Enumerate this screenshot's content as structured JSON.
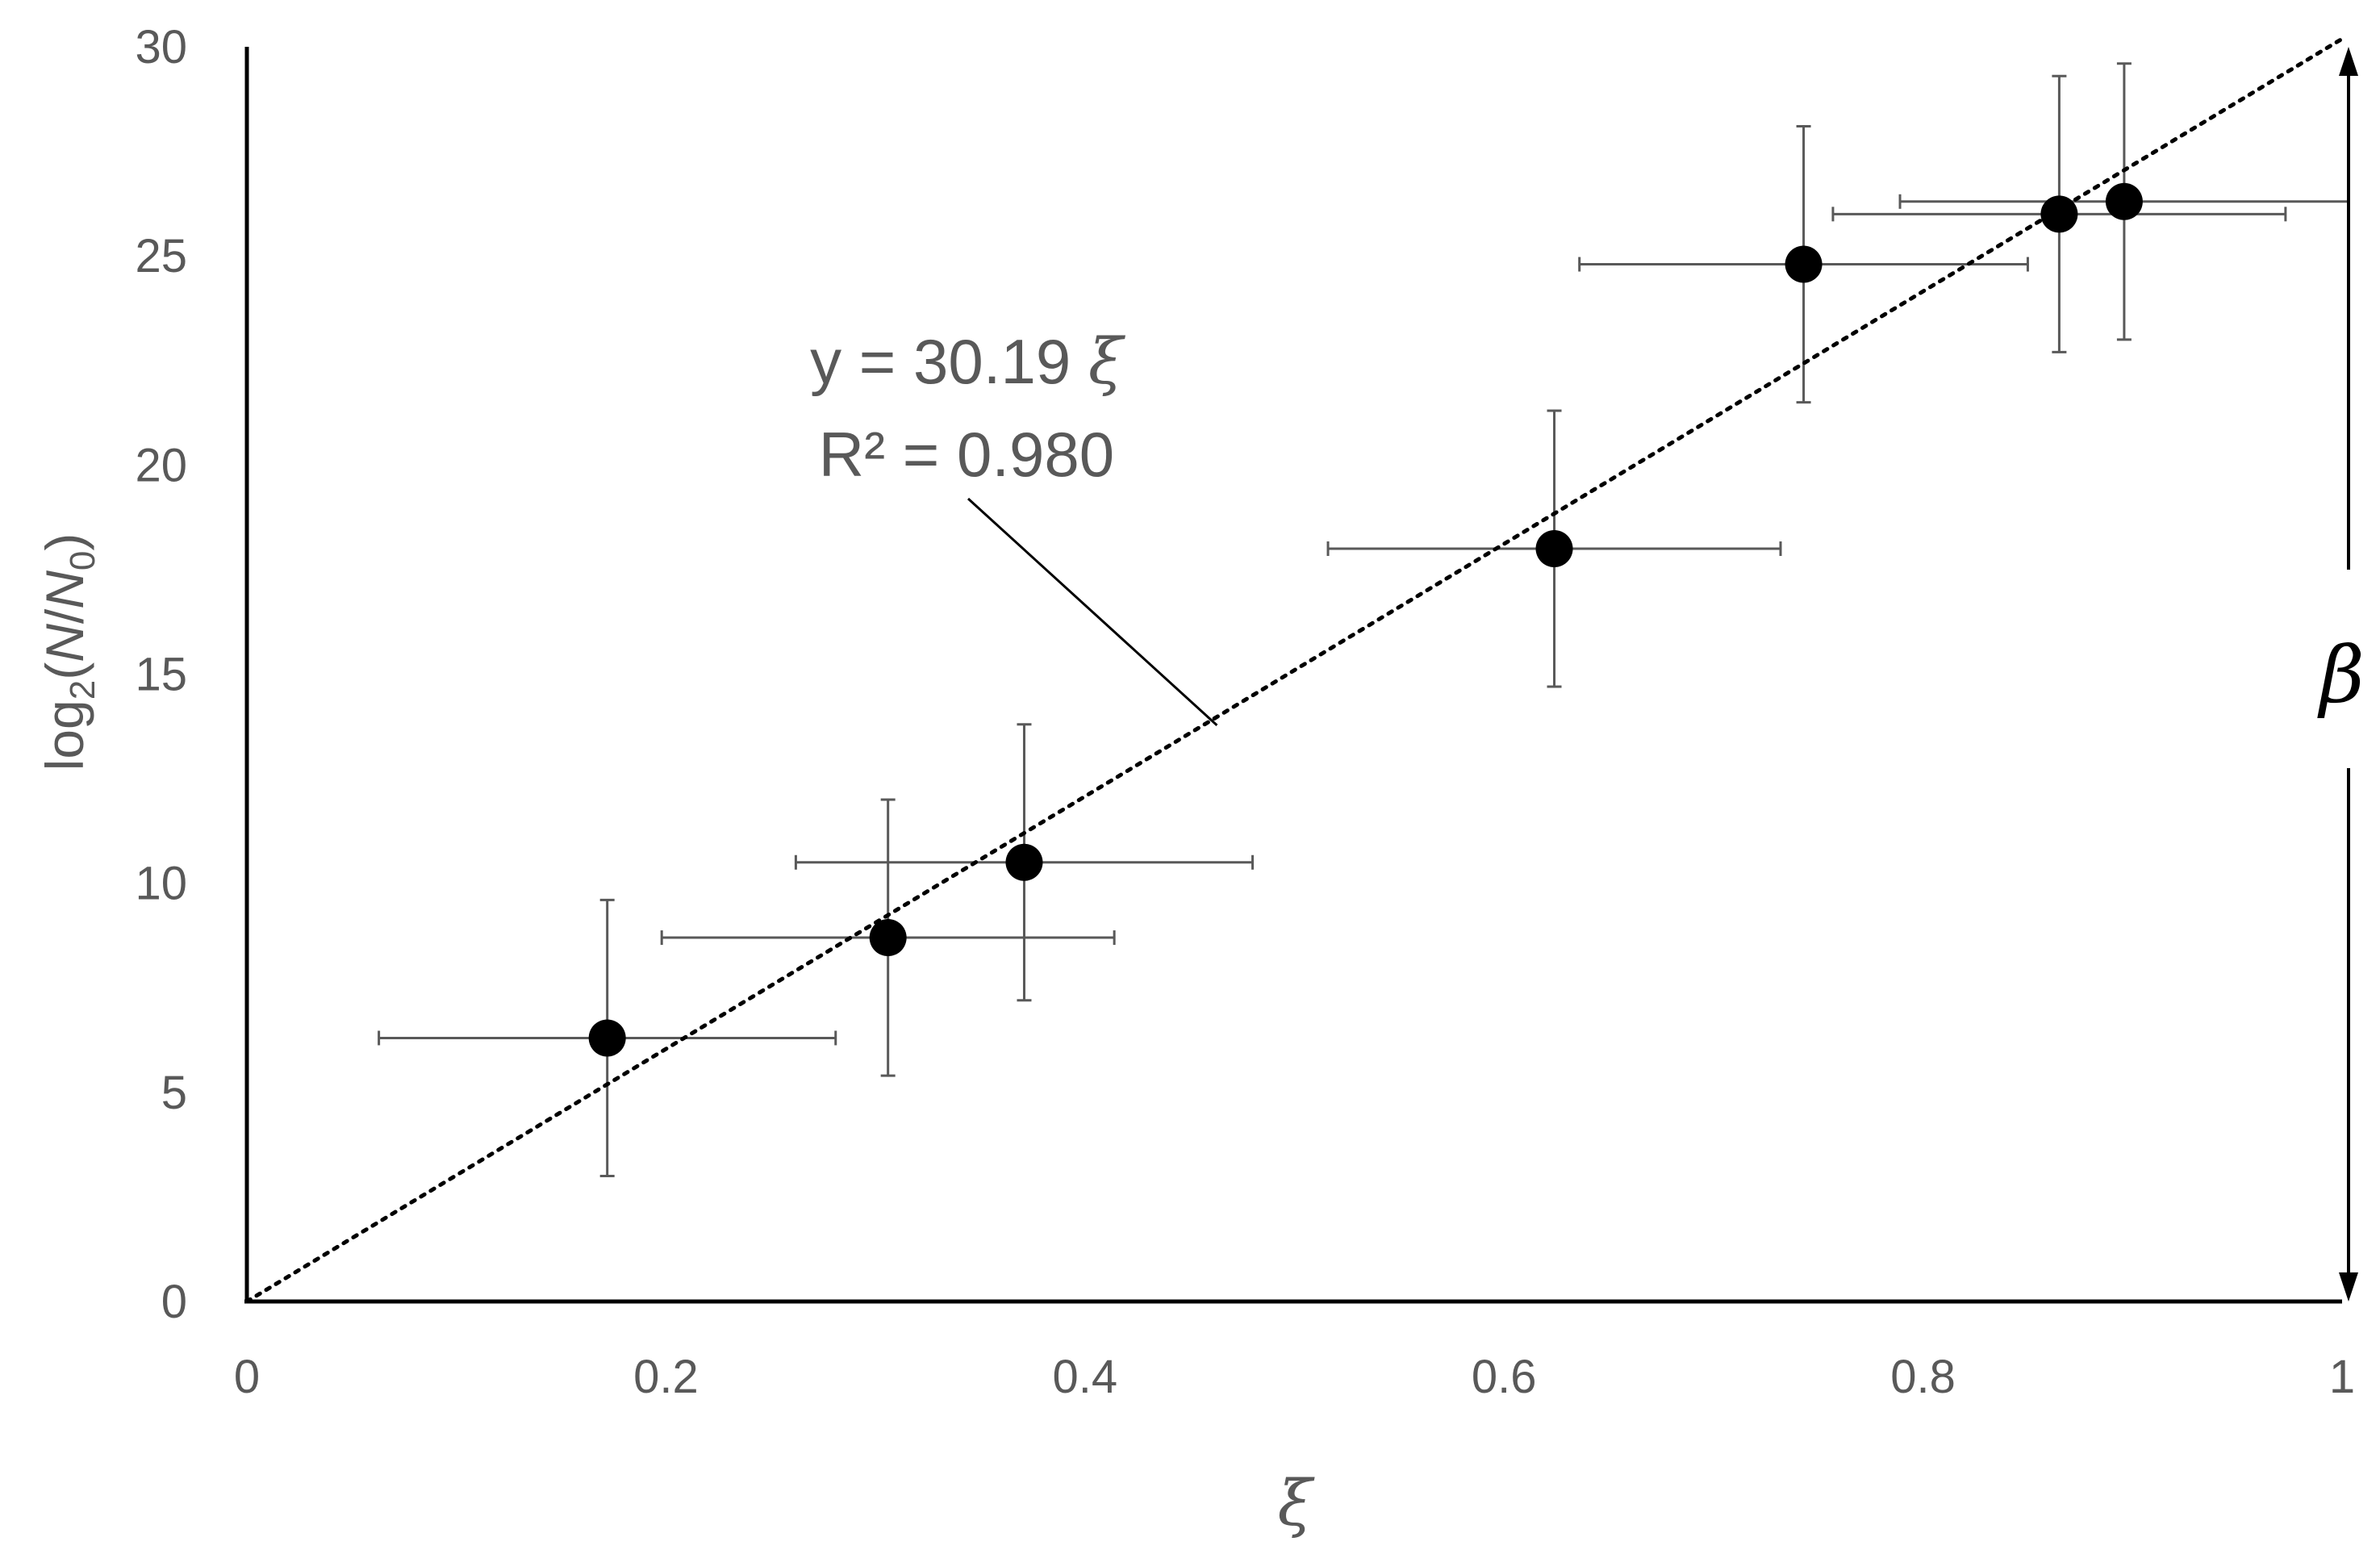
{
  "chart_data": {
    "type": "scatter",
    "title": "",
    "xlabel": "ξ",
    "ylabel": {
      "prefix": "log",
      "subscript": "2",
      "open": "(",
      "n": "N",
      "slash": "/",
      "n0": "N",
      "n0_sub": "0",
      "close": ")"
    },
    "xlim": [
      0,
      1
    ],
    "ylim": [
      0,
      30
    ],
    "xticks": [
      0,
      0.2,
      0.4,
      0.6,
      0.8,
      1
    ],
    "xtick_labels": [
      "0",
      "0.2",
      "0.4",
      "0.6",
      "0.8",
      "1"
    ],
    "yticks": [
      0,
      5,
      10,
      15,
      20,
      25,
      30
    ],
    "ytick_labels": [
      "0",
      "5",
      "10",
      "15",
      "20",
      "25",
      "30"
    ],
    "grid": false,
    "legend": "none",
    "points": [
      {
        "x": 0.172,
        "y": 6.3,
        "xerr": 0.109,
        "yerr": 3.3
      },
      {
        "x": 0.306,
        "y": 8.7,
        "xerr": 0.108,
        "yerr": 3.3
      },
      {
        "x": 0.371,
        "y": 10.5,
        "xerr": 0.109,
        "yerr": 3.3
      },
      {
        "x": 0.624,
        "y": 18.0,
        "xerr": 0.108,
        "yerr": 3.3
      },
      {
        "x": 0.743,
        "y": 24.8,
        "xerr": 0.107,
        "yerr": 3.3
      },
      {
        "x": 0.865,
        "y": 26.0,
        "xerr": 0.108,
        "yerr": 3.3
      },
      {
        "x": 0.896,
        "y": 26.3,
        "xerr": 0.107,
        "yerr": 3.3
      }
    ],
    "fit": {
      "slope": 30.19,
      "intercept": 0,
      "x_range": [
        0,
        1
      ],
      "style": "dotted"
    },
    "annotation": {
      "line1": "y = 30.19 ",
      "line1_symbol": "ξ",
      "line2": "R² = 0.980"
    },
    "beta_arrow": {
      "label": "β",
      "from_y": 0,
      "to_y": 30,
      "at_x": 1
    },
    "colors": {
      "points": "#000000",
      "error_bars": "#595959",
      "axes": "#000000",
      "text": "#595959"
    }
  }
}
